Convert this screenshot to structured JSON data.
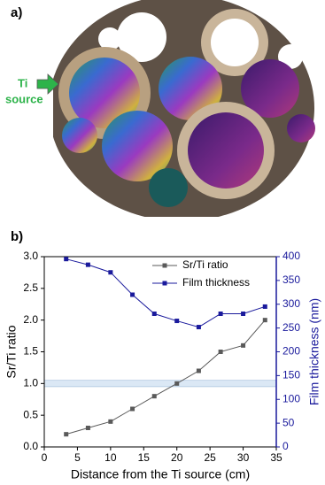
{
  "panel_a": {
    "label": "a)",
    "annotation": [
      "Ti",
      "source"
    ]
  },
  "chart_data": {
    "type": "line",
    "label": "b)",
    "x_label": "Distance from the Ti source (cm)",
    "y_label": "Sr/Ti ratio",
    "y2_label": "Film thickness (nm)",
    "x": [
      3.3,
      6.6,
      10,
      13.3,
      16.6,
      20,
      23.3,
      26.6,
      30,
      33.3
    ],
    "series": [
      {
        "name": "Sr/Ti ratio",
        "color": "#5a5a5a",
        "values": [
          0.2,
          0.3,
          0.4,
          0.6,
          0.8,
          1.0,
          1.2,
          1.5,
          1.6,
          2.0
        ]
      },
      {
        "name": "Film thickness",
        "color": "#1a1a9c",
        "axis": "y2",
        "values": [
          395,
          383,
          367,
          320,
          280,
          265,
          252,
          280,
          280,
          295
        ]
      }
    ],
    "reference_band": [
      0.95,
      1.05
    ],
    "band_color": "#dbe8f5",
    "xlim": [
      0,
      35
    ],
    "xticks": [
      0,
      5,
      10,
      15,
      20,
      25,
      30,
      35
    ],
    "ylim": [
      0,
      3
    ],
    "yticks": [
      {
        "value": 0,
        "label": "0.0"
      },
      0.5,
      {
        "value": 1,
        "label": "1.0"
      },
      1.5,
      {
        "value": 2,
        "label": "2.0"
      },
      2.5,
      {
        "value": 3,
        "label": "3.0"
      }
    ],
    "y2lim": [
      0,
      400
    ],
    "y2ticks": [
      0,
      50,
      100,
      150,
      200,
      250,
      300,
      350,
      400
    ],
    "legend": "upper right"
  }
}
